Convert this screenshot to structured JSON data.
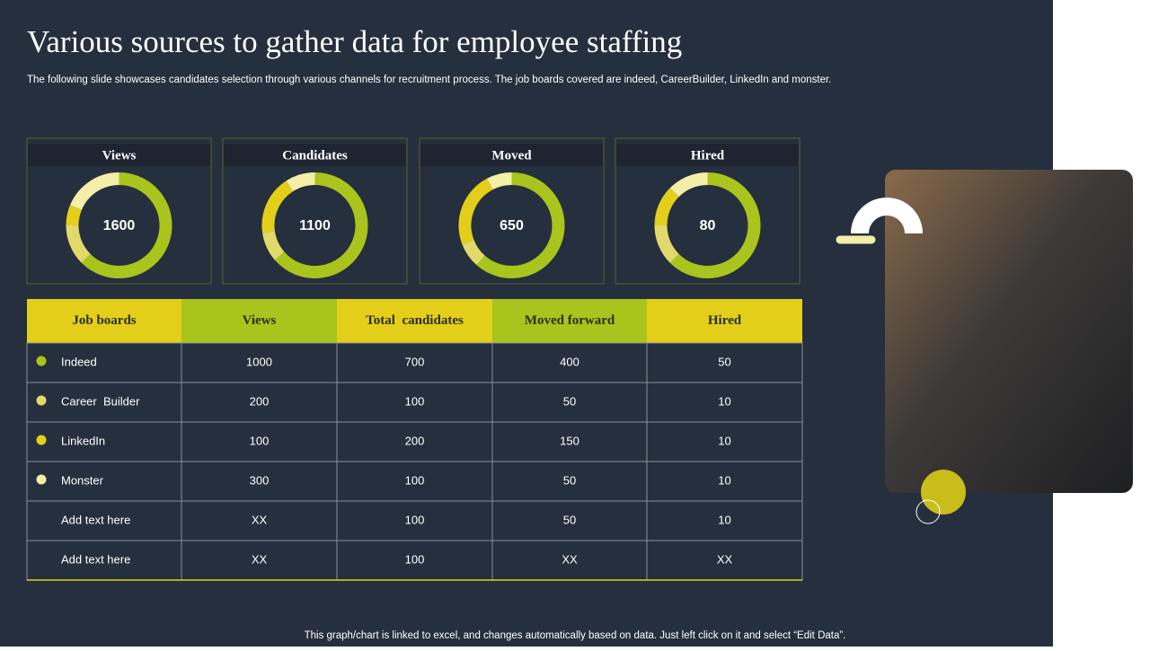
{
  "title": "Various sources to gather data for employee staffing",
  "subtitle": "The following slide showcases candidates selection through various channels for recruitment process. The job boards covered are indeed, CareerBuilder, LinkedIn and monster.",
  "cards": [
    {
      "label": "Views",
      "value": 1600
    },
    {
      "label": "Candidates",
      "value": 1100
    },
    {
      "label": "Moved",
      "value": 650
    },
    {
      "label": "Hired",
      "value": 80
    }
  ],
  "table": {
    "headers": [
      "Job boards",
      "Views",
      "Total  candidates",
      "Moved forward",
      "Hired"
    ],
    "header_colors": [
      "#e3cf1a",
      "#a9c41c",
      "#e3cf1a",
      "#a9c41c",
      "#e3cf1a"
    ],
    "rows": [
      {
        "color": "#a9c41c",
        "cells": [
          "Indeed",
          1000,
          700,
          400,
          50
        ]
      },
      {
        "color": "#e1d96a",
        "cells": [
          "Career  Builder",
          200,
          100,
          50,
          10
        ]
      },
      {
        "color": "#e3cf1a",
        "cells": [
          "LinkedIn",
          100,
          200,
          150,
          10
        ]
      },
      {
        "color": "#f3eea8",
        "cells": [
          "Monster",
          300,
          100,
          50,
          10
        ]
      },
      {
        "cells": [
          "Add text here",
          "XX",
          100,
          50,
          10
        ]
      },
      {
        "cells": [
          "Add text here",
          "XX",
          100,
          "XX",
          "XX"
        ]
      }
    ]
  },
  "footer": "This graph/chart is linked to excel,  and changes automatically based on data. Just left click on it and select “Edit Data”."
}
